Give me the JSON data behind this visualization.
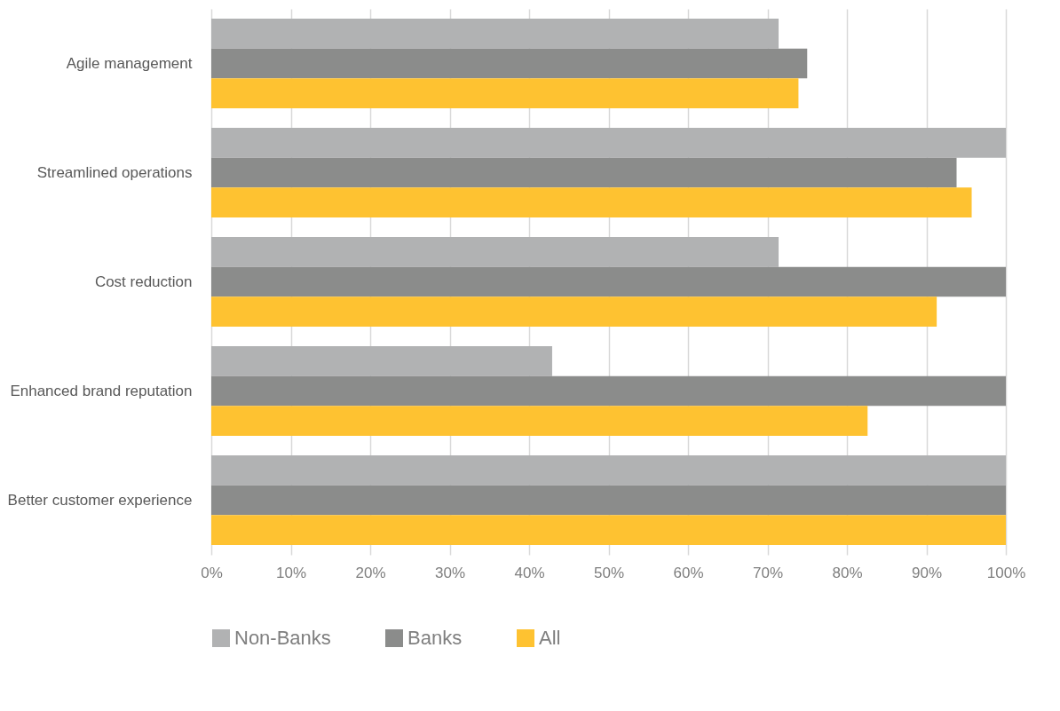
{
  "chart_data": {
    "type": "bar",
    "orientation": "horizontal",
    "categories": [
      "Agile management",
      "Streamlined operations",
      "Cost reduction",
      "Enhanced brand reputation",
      "Better customer experience"
    ],
    "series": [
      {
        "name": "Non-Banks",
        "color": "#b1b2b3",
        "values": [
          71.4,
          100,
          71.4,
          42.9,
          100
        ]
      },
      {
        "name": "Banks",
        "color": "#8b8c8b",
        "values": [
          75,
          93.8,
          100,
          100,
          100
        ]
      },
      {
        "name": "All",
        "color": "#fec231",
        "values": [
          73.9,
          95.7,
          91.3,
          82.6,
          100
        ]
      }
    ],
    "xlim": [
      0,
      100
    ],
    "xticks": [
      {
        "value": 0,
        "label": "0%"
      },
      {
        "value": 10,
        "label": "10%"
      },
      {
        "value": 20,
        "label": "20%"
      },
      {
        "value": 30,
        "label": "30%"
      },
      {
        "value": 40,
        "label": "40%"
      },
      {
        "value": 50,
        "label": "50%"
      },
      {
        "value": 60,
        "label": "60%"
      },
      {
        "value": 70,
        "label": "70%"
      },
      {
        "value": 80,
        "label": "80%"
      },
      {
        "value": 90,
        "label": "90%"
      },
      {
        "value": 100,
        "label": "100%"
      }
    ],
    "grid": "x",
    "legend": "bottom"
  }
}
